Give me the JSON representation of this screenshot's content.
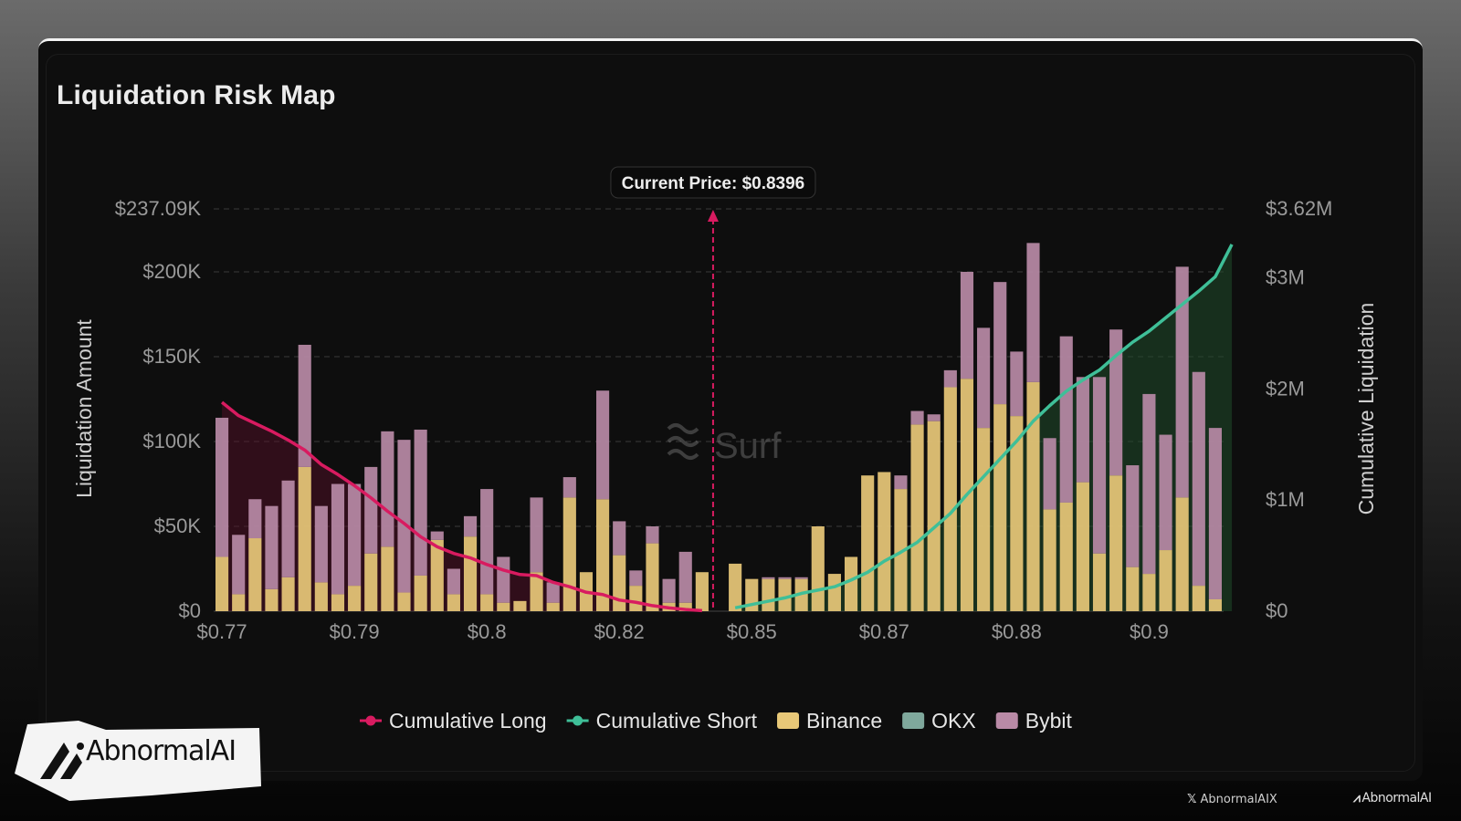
{
  "chart_data": {
    "type": "bar",
    "title": "Liquidation Risk Map",
    "ylabel": "Liquidation Amount",
    "y2label": "Cumulative Liquidation",
    "ylim": [
      0,
      237090
    ],
    "y2lim": [
      0,
      3620000
    ],
    "y_ticks": [
      {
        "value": 0,
        "label": "$0"
      },
      {
        "value": 50000,
        "label": "$50K"
      },
      {
        "value": 100000,
        "label": "$100K"
      },
      {
        "value": 150000,
        "label": "$150K"
      },
      {
        "value": 200000,
        "label": "$200K"
      },
      {
        "value": 237090,
        "label": "$237.09K"
      }
    ],
    "y2_ticks": [
      {
        "value": 0,
        "label": "$0"
      },
      {
        "value": 1000000,
        "label": "$1M"
      },
      {
        "value": 2000000,
        "label": "$2M"
      },
      {
        "value": 3000000,
        "label": "$3M"
      },
      {
        "value": 3620000,
        "label": "$3.62M"
      }
    ],
    "x_ticks": [
      {
        "index": 0,
        "label": "$0.77"
      },
      {
        "index": 8,
        "label": "$0.79"
      },
      {
        "index": 16,
        "label": "$0.8"
      },
      {
        "index": 24,
        "label": "$0.82"
      },
      {
        "index": 32,
        "label": "$0.85"
      },
      {
        "index": 40,
        "label": "$0.87"
      },
      {
        "index": 48,
        "label": "$0.88"
      },
      {
        "index": 56,
        "label": "$0.9"
      }
    ],
    "current_price": {
      "index": 30,
      "label": "Current Price: $0.8396"
    },
    "legend_position": "bottom-center",
    "legend": [
      {
        "name": "Cumulative Long",
        "kind": "line",
        "color": "#d81b60"
      },
      {
        "name": "Cumulative Short",
        "kind": "line",
        "color": "#3fbf98"
      },
      {
        "name": "Binance",
        "kind": "box",
        "color": "#e8c878"
      },
      {
        "name": "OKX",
        "kind": "box",
        "color": "#7fa89c"
      },
      {
        "name": "Bybit",
        "kind": "box",
        "color": "#b98aa6"
      }
    ],
    "bars": {
      "binance": [
        32000,
        10000,
        43000,
        13000,
        20000,
        85000,
        17000,
        10000,
        15000,
        34000,
        38000,
        11000,
        21000,
        42000,
        10000,
        44000,
        10000,
        5000,
        6000,
        23000,
        5000,
        67000,
        23000,
        66000,
        33000,
        15000,
        40000,
        5000,
        5000,
        23000,
        0,
        28000,
        19000,
        19000,
        19000,
        19000,
        50000,
        22000,
        32000,
        80000,
        82000,
        72000,
        110000,
        112000,
        132000,
        137000,
        108000,
        122000,
        115000,
        135000,
        60000,
        64000,
        76000,
        34000,
        80000,
        26000,
        22000,
        36000,
        67000,
        15000,
        7000
      ],
      "okx": [
        0,
        0,
        0,
        0,
        0,
        0,
        0,
        0,
        0,
        0,
        0,
        0,
        0,
        0,
        0,
        0,
        0,
        0,
        0,
        0,
        0,
        0,
        0,
        0,
        0,
        0,
        0,
        0,
        0,
        0,
        0,
        0,
        0,
        0,
        0,
        0,
        0,
        0,
        0,
        0,
        0,
        0,
        0,
        0,
        0,
        0,
        0,
        0,
        0,
        0,
        0,
        0,
        0,
        0,
        0,
        0,
        0,
        0,
        0,
        0,
        0
      ],
      "bybit": [
        82000,
        35000,
        23000,
        49000,
        57000,
        72000,
        45000,
        65000,
        60000,
        51000,
        68000,
        90000,
        86000,
        5000,
        15000,
        12000,
        62000,
        27000,
        0,
        44000,
        12000,
        12000,
        0,
        64000,
        20000,
        9000,
        10000,
        14000,
        30000,
        0,
        0,
        0,
        0,
        1000,
        1000,
        1000,
        0,
        0,
        0,
        0,
        0,
        8000,
        8000,
        4000,
        10000,
        63000,
        59000,
        72000,
        38000,
        82000,
        42000,
        98000,
        62000,
        104000,
        86000,
        60000,
        106000,
        68000,
        136000,
        126000,
        101000
      ],
      "other": [
        0,
        0,
        0,
        0,
        0,
        0,
        0,
        0,
        0,
        0,
        0,
        0,
        0,
        0,
        0,
        0,
        0,
        0,
        0,
        0,
        0,
        0,
        0,
        0,
        0,
        0,
        0,
        0,
        0,
        0,
        0,
        0,
        0,
        0,
        0,
        0,
        0,
        0,
        0,
        0,
        0,
        0,
        0,
        0,
        0,
        0,
        0,
        0,
        0,
        0,
        0,
        0,
        0,
        0,
        0,
        0,
        0,
        0,
        0,
        0,
        0
      ]
    },
    "series": [
      {
        "name": "Cumulative Long",
        "points": [
          [
            0,
            1880000
          ],
          [
            1,
            1760000
          ],
          [
            2,
            1690000
          ],
          [
            3,
            1620000
          ],
          [
            4,
            1540000
          ],
          [
            5,
            1450000
          ],
          [
            6,
            1320000
          ],
          [
            7,
            1230000
          ],
          [
            8,
            1130000
          ],
          [
            9,
            1020000
          ],
          [
            10,
            900000
          ],
          [
            11,
            790000
          ],
          [
            12,
            670000
          ],
          [
            13,
            580000
          ],
          [
            14,
            520000
          ],
          [
            15,
            480000
          ],
          [
            16,
            420000
          ],
          [
            17,
            370000
          ],
          [
            18,
            330000
          ],
          [
            19,
            320000
          ],
          [
            20,
            260000
          ],
          [
            21,
            220000
          ],
          [
            22,
            170000
          ],
          [
            23,
            150000
          ],
          [
            24,
            100000
          ],
          [
            25,
            80000
          ],
          [
            26,
            50000
          ],
          [
            27,
            30000
          ],
          [
            28,
            15000
          ],
          [
            29,
            5000
          ]
        ]
      },
      {
        "name": "Cumulative Short",
        "points": [
          [
            31,
            30000
          ],
          [
            32,
            60000
          ],
          [
            33,
            90000
          ],
          [
            34,
            120000
          ],
          [
            35,
            160000
          ],
          [
            36,
            190000
          ],
          [
            37,
            220000
          ],
          [
            38,
            280000
          ],
          [
            39,
            350000
          ],
          [
            40,
            450000
          ],
          [
            41,
            530000
          ],
          [
            42,
            620000
          ],
          [
            43,
            750000
          ],
          [
            44,
            880000
          ],
          [
            45,
            1050000
          ],
          [
            46,
            1210000
          ],
          [
            47,
            1370000
          ],
          [
            48,
            1530000
          ],
          [
            49,
            1710000
          ],
          [
            50,
            1850000
          ],
          [
            51,
            1980000
          ],
          [
            52,
            2080000
          ],
          [
            53,
            2170000
          ],
          [
            54,
            2300000
          ],
          [
            55,
            2420000
          ],
          [
            56,
            2520000
          ],
          [
            57,
            2640000
          ],
          [
            58,
            2760000
          ],
          [
            59,
            2880000
          ],
          [
            60,
            3010000
          ],
          [
            61,
            3300000
          ]
        ]
      }
    ]
  },
  "watermark": "Surf",
  "brand": "AbnormalAI",
  "footer": {
    "handle": "AbnormalAIX",
    "brand": "AbnormalAI"
  },
  "colors": {
    "binance": "#e8c878",
    "okx": "#7fa89c",
    "bybit": "#b98aa6",
    "long": "#d81b60",
    "short": "#3fbf98"
  }
}
